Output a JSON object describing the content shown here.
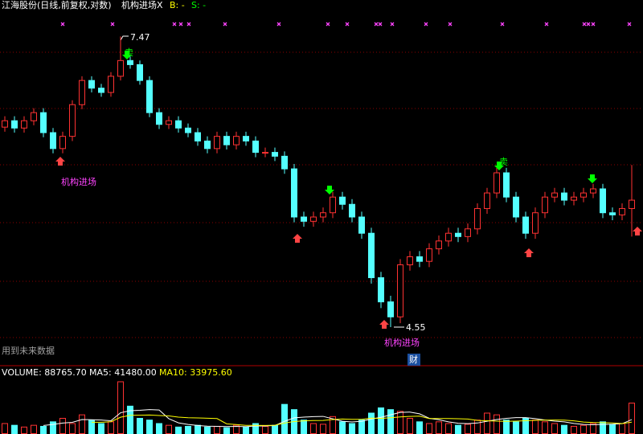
{
  "header": {
    "title": "江海股份(日线,前复权,对数)",
    "indicator": "机构进场X",
    "b": "B: -",
    "s": "S: -"
  },
  "annotations": {
    "high_label": "7.47",
    "low_label": "4.55",
    "entry_1": "机构进场",
    "entry_2": "机构进场",
    "sell_1": "卖",
    "sell_2": "卖",
    "cai": "财",
    "future": "用到未来数据"
  },
  "chart_data": [
    {
      "type": "candlestick",
      "log_scale": true,
      "ylim": [
        4.26,
        7.95
      ],
      "up_color": "#ff3232",
      "down_color": "#54ffff",
      "open": [
        6.4,
        6.47,
        6.39,
        6.47,
        6.56,
        6.34,
        6.17,
        6.3,
        6.65,
        6.93,
        6.84,
        6.79,
        6.98,
        7.17,
        7.12,
        6.93,
        6.56,
        6.43,
        6.47,
        6.39,
        6.34,
        6.25,
        6.17,
        6.3,
        6.21,
        6.3,
        6.25,
        6.13,
        6.13,
        6.09,
        5.96,
        5.49,
        5.45,
        5.49,
        5.53,
        5.68,
        5.61,
        5.49,
        5.34,
        4.95,
        4.75,
        4.63,
        5.06,
        5.13,
        5.09,
        5.2,
        5.27,
        5.34,
        5.31,
        5.38,
        5.57,
        5.72,
        5.92,
        5.68,
        5.49,
        5.34,
        5.53,
        5.68,
        5.72,
        5.65,
        5.68,
        5.72,
        5.76,
        5.53,
        5.51,
        5.57
      ],
      "high": [
        6.52,
        6.52,
        6.52,
        6.61,
        6.61,
        6.39,
        6.35,
        6.7,
        6.98,
        6.98,
        6.89,
        7.03,
        7.47,
        7.22,
        7.17,
        6.98,
        6.61,
        6.52,
        6.52,
        6.44,
        6.39,
        6.3,
        6.35,
        6.35,
        6.35,
        6.35,
        6.3,
        6.18,
        6.18,
        6.14,
        6.01,
        5.54,
        5.54,
        5.58,
        5.73,
        5.73,
        5.66,
        5.54,
        5.39,
        5.0,
        4.8,
        5.11,
        5.18,
        5.18,
        5.25,
        5.32,
        5.39,
        5.39,
        5.43,
        5.62,
        5.77,
        5.97,
        5.97,
        5.73,
        5.54,
        5.58,
        5.73,
        5.77,
        5.77,
        5.73,
        5.77,
        5.81,
        5.81,
        5.58,
        5.62,
        6.0
      ],
      "low": [
        6.35,
        6.34,
        6.34,
        6.42,
        6.29,
        6.12,
        6.12,
        6.25,
        6.6,
        6.79,
        6.74,
        6.74,
        6.93,
        7.07,
        6.88,
        6.51,
        6.38,
        6.38,
        6.34,
        6.29,
        6.2,
        6.12,
        6.12,
        6.16,
        6.16,
        6.2,
        6.08,
        6.08,
        6.04,
        5.91,
        5.44,
        5.4,
        5.4,
        5.44,
        5.48,
        5.56,
        5.44,
        5.29,
        4.9,
        4.7,
        4.55,
        4.58,
        5.01,
        5.04,
        5.04,
        5.15,
        5.22,
        5.26,
        5.26,
        5.33,
        5.52,
        5.67,
        5.63,
        5.44,
        5.29,
        5.29,
        5.48,
        5.63,
        5.6,
        5.6,
        5.63,
        5.67,
        5.48,
        5.46,
        5.46,
        5.31
      ],
      "close": [
        6.47,
        6.39,
        6.47,
        6.56,
        6.34,
        6.17,
        6.3,
        6.65,
        6.93,
        6.84,
        6.79,
        6.98,
        7.17,
        7.12,
        6.93,
        6.56,
        6.43,
        6.47,
        6.39,
        6.34,
        6.25,
        6.17,
        6.3,
        6.21,
        6.3,
        6.25,
        6.13,
        6.13,
        6.09,
        5.96,
        5.49,
        5.45,
        5.49,
        5.53,
        5.68,
        5.61,
        5.49,
        5.34,
        4.95,
        4.75,
        4.63,
        5.06,
        5.13,
        5.09,
        5.2,
        5.27,
        5.34,
        5.31,
        5.38,
        5.57,
        5.72,
        5.92,
        5.68,
        5.49,
        5.34,
        5.53,
        5.68,
        5.72,
        5.65,
        5.68,
        5.72,
        5.76,
        5.53,
        5.51,
        5.57,
        5.65
      ]
    },
    {
      "type": "bar",
      "ylim": [
        0,
        180000
      ],
      "labels": {
        "volume": "VOLUME: 88765.70",
        "ma5": "MA5: 41480.00",
        "ma10": "MA10: 33975.60"
      },
      "values": [
        30000,
        25000,
        20000,
        25000,
        22000,
        35000,
        45000,
        30000,
        55000,
        40000,
        30000,
        35000,
        150000,
        80000,
        45000,
        40000,
        30000,
        25000,
        20000,
        22000,
        25000,
        20000,
        22000,
        18000,
        25000,
        20000,
        30000,
        22000,
        25000,
        85000,
        70000,
        40000,
        30000,
        28000,
        50000,
        35000,
        30000,
        40000,
        60000,
        75000,
        70000,
        65000,
        45000,
        35000,
        30000,
        35000,
        30000,
        25000,
        28000,
        40000,
        60000,
        55000,
        40000,
        35000,
        45000,
        40000,
        35000,
        30000,
        25000,
        22000,
        25000,
        30000,
        35000,
        28000,
        30000,
        88765.7
      ],
      "series": [
        {
          "color": "#ffffff",
          "values": [
            null,
            null,
            null,
            null,
            24400,
            27400,
            31400,
            33400,
            41400,
            41000,
            40000,
            38000,
            61000,
            67000,
            68000,
            70000,
            69000,
            44000,
            32000,
            27400,
            24400,
            22400,
            21800,
            21400,
            22000,
            21000,
            23000,
            23000,
            24400,
            36400,
            46400,
            48400,
            50000,
            50600,
            43600,
            36600,
            34600,
            36600,
            43000,
            48000,
            55000,
            62000,
            63000,
            58000,
            45000,
            41000,
            35000,
            31000,
            29600,
            31600,
            36600,
            41600,
            45000,
            47000,
            47000,
            44000,
            40000,
            37000,
            35000,
            30400,
            27400,
            26400,
            27400,
            28000,
            29600,
            41480
          ]
        },
        {
          "color": "#ffff00",
          "values": [
            null,
            null,
            null,
            null,
            null,
            null,
            null,
            null,
            null,
            33700,
            33700,
            35200,
            48200,
            53700,
            54000,
            54500,
            53000,
            52000,
            48500,
            46700,
            46200,
            45200,
            44400,
            29200,
            27200,
            24900,
            24900,
            24600,
            25100,
            31400,
            35900,
            37900,
            38700,
            39000,
            41500,
            43000,
            42000,
            42100,
            45600,
            44600,
            46600,
            49100,
            50600,
            51300,
            44300,
            44300,
            44300,
            43800,
            43000,
            39000,
            38000,
            37000,
            36400,
            37000,
            38000,
            39200,
            39700,
            40000,
            39700,
            37900,
            34400,
            33000,
            32500,
            31800,
            30000,
            33975.6
          ]
        }
      ]
    }
  ]
}
